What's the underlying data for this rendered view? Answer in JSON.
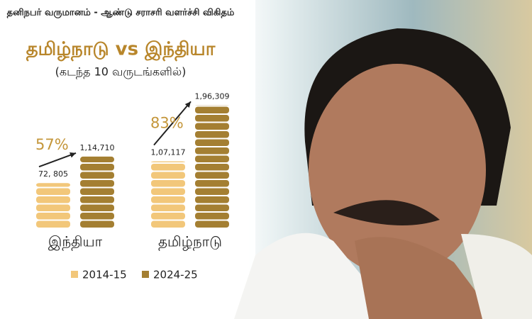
{
  "chart_data": {
    "type": "coin-bar",
    "title": "தனிநபர் வருமானம் - ஆண்டு சராசரி வளர்ச்சி விகிதம்",
    "subtitle": "தமிழ்நாடு vs இந்தியா",
    "note": "(கடந்த 10 வருடங்களில்)",
    "categories": [
      "இந்தியா",
      "தமிழ்நாடு"
    ],
    "series": [
      {
        "name": "2014-15",
        "color": "#f2c77a",
        "values": [
          72805,
          107117
        ],
        "value_labels": [
          "72, 805",
          "1,07,117"
        ]
      },
      {
        "name": "2024-25",
        "color": "#a47f32",
        "values": [
          114710,
          196309
        ],
        "value_labels": [
          "1,14,710",
          "1,96,309"
        ]
      }
    ],
    "growth": {
      "values": [
        57,
        83
      ],
      "value_labels": [
        "57%",
        "83%"
      ]
    }
  }
}
